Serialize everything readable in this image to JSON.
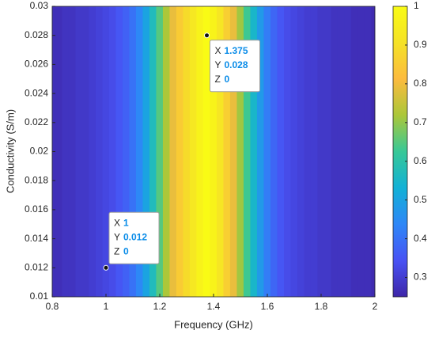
{
  "chart_data": {
    "type": "heatmap",
    "xlabel": "Frequency (GHz)",
    "ylabel": "Conductivity (S/m)",
    "x": [
      0.8,
      0.825,
      0.85,
      0.875,
      0.9,
      0.925,
      0.95,
      0.975,
      1.0,
      1.025,
      1.05,
      1.075,
      1.1,
      1.125,
      1.15,
      1.175,
      1.2,
      1.225,
      1.25,
      1.275,
      1.3,
      1.325,
      1.35,
      1.375,
      1.4,
      1.425,
      1.45,
      1.475,
      1.5,
      1.525,
      1.55,
      1.575,
      1.6,
      1.625,
      1.65,
      1.675,
      1.7,
      1.725,
      1.75,
      1.775,
      1.8,
      1.825,
      1.85,
      1.875,
      1.9,
      1.925,
      1.95,
      1.975,
      2.0
    ],
    "values": [
      0.27,
      0.27,
      0.28,
      0.28,
      0.29,
      0.29,
      0.3,
      0.31,
      0.32,
      0.33,
      0.35,
      0.37,
      0.4,
      0.44,
      0.5,
      0.57,
      0.65,
      0.72,
      0.79,
      0.85,
      0.89,
      0.93,
      0.97,
      1.0,
      0.97,
      0.92,
      0.86,
      0.79,
      0.71,
      0.63,
      0.55,
      0.48,
      0.42,
      0.38,
      0.35,
      0.33,
      0.32,
      0.31,
      0.3,
      0.3,
      0.29,
      0.29,
      0.28,
      0.28,
      0.28,
      0.27,
      0.27,
      0.27,
      0.26
    ],
    "xlim": [
      0.8,
      2
    ],
    "xticks": [
      0.8,
      1,
      1.2,
      1.4,
      1.6,
      1.8,
      2
    ],
    "ylim": [
      0.01,
      0.03
    ],
    "yticks": [
      0.01,
      0.012,
      0.014,
      0.016,
      0.018,
      0.02,
      0.022,
      0.024,
      0.026,
      0.028,
      0.03
    ],
    "clim": [
      0.25,
      1
    ],
    "cticks": [
      0.3,
      0.4,
      0.5,
      0.6,
      0.7,
      0.8,
      0.9,
      1
    ],
    "colormap": "parula",
    "datatip_labels": [
      "X",
      "Y",
      "Z"
    ],
    "datatips": [
      {
        "x": 1.375,
        "y": 0.028,
        "z": 0,
        "position": "below-right"
      },
      {
        "x": 1,
        "y": 0.012,
        "z": 0,
        "position": "above-right"
      }
    ]
  }
}
